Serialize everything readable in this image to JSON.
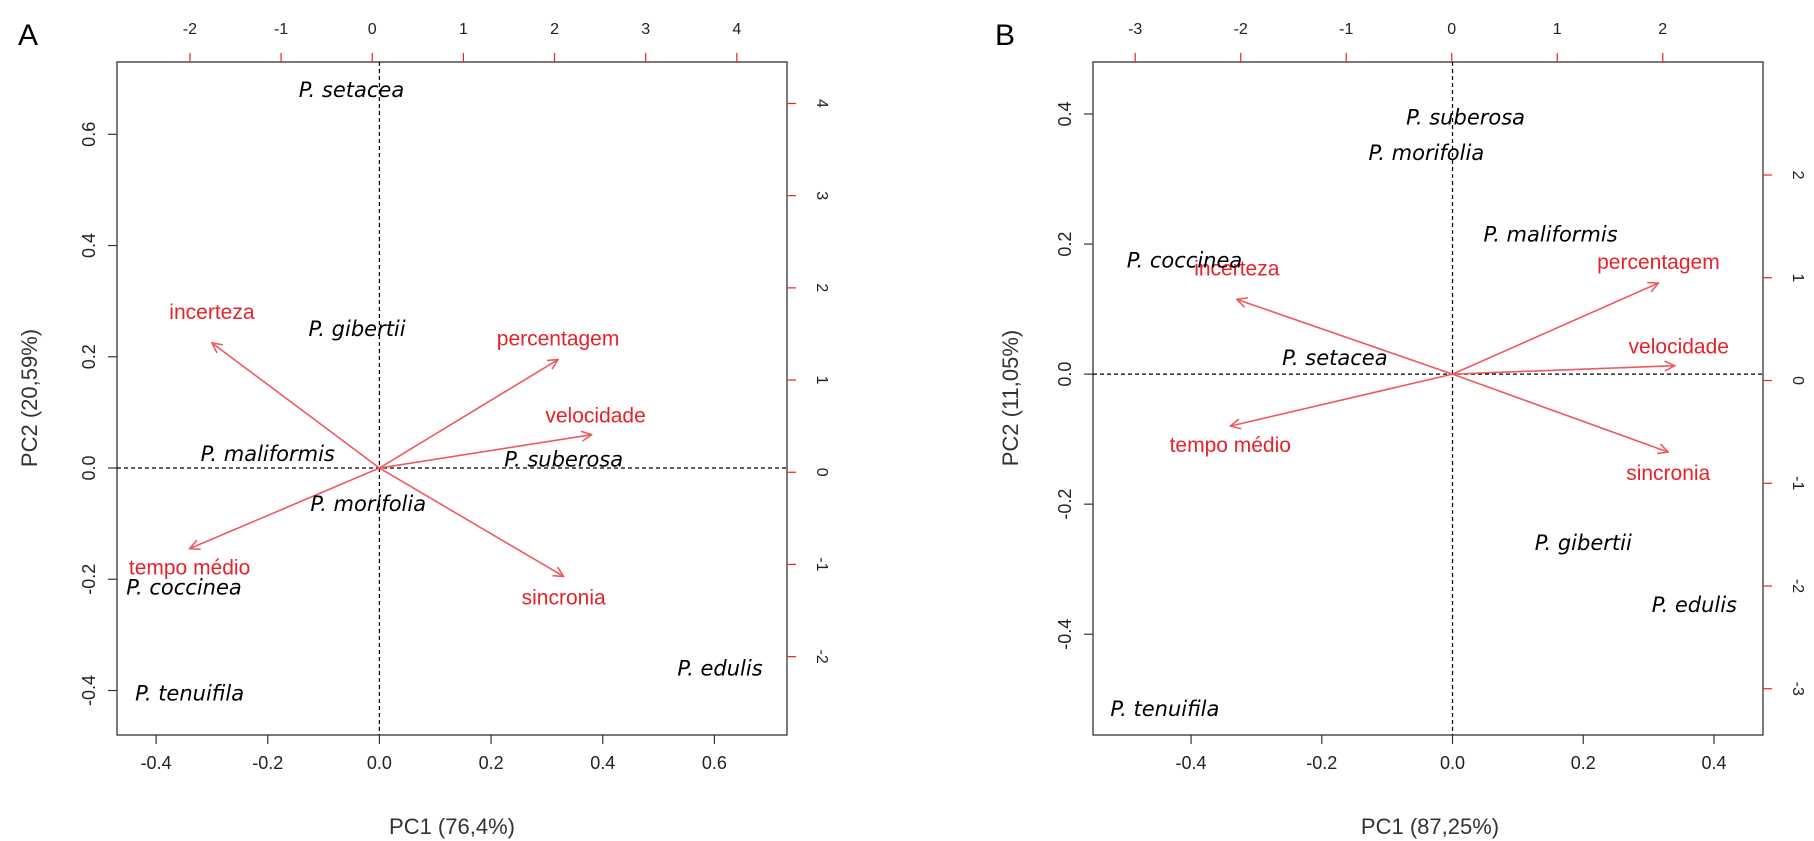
{
  "chart_data": [
    {
      "type": "biplot",
      "panel_label": "A",
      "xlabel": "PC1 (76,4%)",
      "ylabel": "PC2 (20,59%)",
      "xlim": [
        -0.47,
        0.73
      ],
      "ylim": [
        -0.48,
        0.73
      ],
      "x_ticks": [
        "-0.4",
        "-0.2",
        "0.0",
        "0.2",
        "0.4",
        "0.6"
      ],
      "y_ticks": [
        "-0.4",
        "-0.2",
        "0.0",
        "0.2",
        "0.4",
        "0.6"
      ],
      "top_xlim": [
        -2.8,
        4.55
      ],
      "top_ticks": [
        "-2",
        "-1",
        "0",
        "1",
        "2",
        "3",
        "4"
      ],
      "right_ylim": [
        -2.85,
        4.45
      ],
      "right_ticks": [
        "-2",
        "-1",
        "0",
        "1",
        "2",
        "3",
        "4"
      ],
      "species": [
        {
          "name": "P. setacea",
          "x": -0.05,
          "y": 0.68
        },
        {
          "name": "P. gibertii",
          "x": -0.04,
          "y": 0.25
        },
        {
          "name": "P. maliformis",
          "x": -0.2,
          "y": 0.025
        },
        {
          "name": "P. suberosa",
          "x": 0.33,
          "y": 0.015
        },
        {
          "name": "P. morifolia",
          "x": -0.02,
          "y": -0.065
        },
        {
          "name": "P. coccinea",
          "x": -0.35,
          "y": -0.215
        },
        {
          "name": "P. tenuifila",
          "x": -0.34,
          "y": -0.405
        },
        {
          "name": "P. edulis",
          "x": 0.61,
          "y": -0.36
        }
      ],
      "variables": [
        {
          "name": "percentagem",
          "x": 0.32,
          "y": 0.195
        },
        {
          "name": "velocidade",
          "x": 0.38,
          "y": 0.06
        },
        {
          "name": "incerteza",
          "x": -0.3,
          "y": 0.225
        },
        {
          "name": "tempo médio",
          "x": -0.34,
          "y": -0.145
        },
        {
          "name": "sincronia",
          "x": 0.33,
          "y": -0.195
        }
      ]
    },
    {
      "type": "biplot",
      "panel_label": "B",
      "xlabel": "PC1 (87,25%)",
      "ylabel": "PC2 (11,05%)",
      "xlim": [
        -0.55,
        0.475
      ],
      "ylim": [
        -0.555,
        0.48
      ],
      "x_ticks": [
        "-0.4",
        "-0.2",
        "0.0",
        "0.2",
        "0.4"
      ],
      "y_ticks": [
        "-0.4",
        "-0.2",
        "0.0",
        "0.2",
        "0.4"
      ],
      "top_xlim": [
        -3.4,
        2.95
      ],
      "top_ticks": [
        "-3",
        "-2",
        "-1",
        "0",
        "1",
        "2"
      ],
      "right_ylim": [
        -3.45,
        3.1
      ],
      "right_ticks": [
        "-3",
        "-2",
        "-1",
        "0",
        "1",
        "2"
      ],
      "species": [
        {
          "name": "P. suberosa",
          "x": 0.02,
          "y": 0.395
        },
        {
          "name": "P. morifolia",
          "x": -0.04,
          "y": 0.34
        },
        {
          "name": "P. maliformis",
          "x": 0.15,
          "y": 0.215
        },
        {
          "name": "P. coccinea",
          "x": -0.41,
          "y": 0.175
        },
        {
          "name": "P. setacea",
          "x": -0.18,
          "y": 0.025
        },
        {
          "name": "P. gibertii",
          "x": 0.2,
          "y": -0.26
        },
        {
          "name": "P. edulis",
          "x": 0.37,
          "y": -0.355
        },
        {
          "name": "P. tenuifila",
          "x": -0.44,
          "y": -0.515
        }
      ],
      "variables": [
        {
          "name": "percentagem",
          "x": 0.315,
          "y": 0.14
        },
        {
          "name": "velocidade",
          "x": 0.34,
          "y": 0.013
        },
        {
          "name": "incerteza",
          "x": -0.33,
          "y": 0.115
        },
        {
          "name": "tempo médio",
          "x": -0.34,
          "y": -0.08
        },
        {
          "name": "sincronia",
          "x": 0.33,
          "y": -0.12
        }
      ]
    }
  ]
}
